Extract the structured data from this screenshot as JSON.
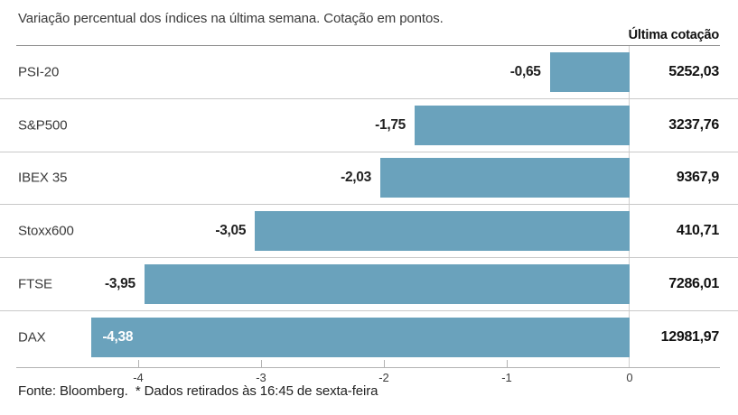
{
  "chart_data": {
    "type": "bar",
    "orientation": "horizontal",
    "title": "Variação percentual dos índices na última semana. Cotação em pontos.",
    "quotes_column_header": "Última cotação",
    "source_note": "Fonte: Bloomberg.  * Dados retirados às 16:45 de sexta-feira",
    "categories": [
      "PSI-20",
      "S&P500",
      "IBEX 35",
      "Stoxx600",
      "FTSE",
      "DAX"
    ],
    "values": [
      -0.65,
      -1.75,
      -2.03,
      -3.05,
      -3.95,
      -4.38
    ],
    "value_labels": [
      "-0,65",
      "-1,75",
      "-2,03",
      "-3,05",
      "-3,95",
      "-4,38"
    ],
    "last_quotes": [
      "5252,03",
      "3237,76",
      "9367,9",
      "410,71",
      "7286,01",
      "12981,97"
    ],
    "x_ticks": [
      -4,
      -3,
      -2,
      -1,
      0
    ],
    "x_tick_labels": [
      "-4",
      "-3",
      "-2",
      "-1",
      "0"
    ],
    "xlim": [
      -5,
      0.9
    ],
    "grid": false,
    "legend": false,
    "bar_color": "#6aa2bc",
    "value_label_color": "#222222",
    "value_label_inside": [
      false,
      false,
      false,
      false,
      false,
      true
    ],
    "value_label_inside_color": "#ffffff"
  }
}
